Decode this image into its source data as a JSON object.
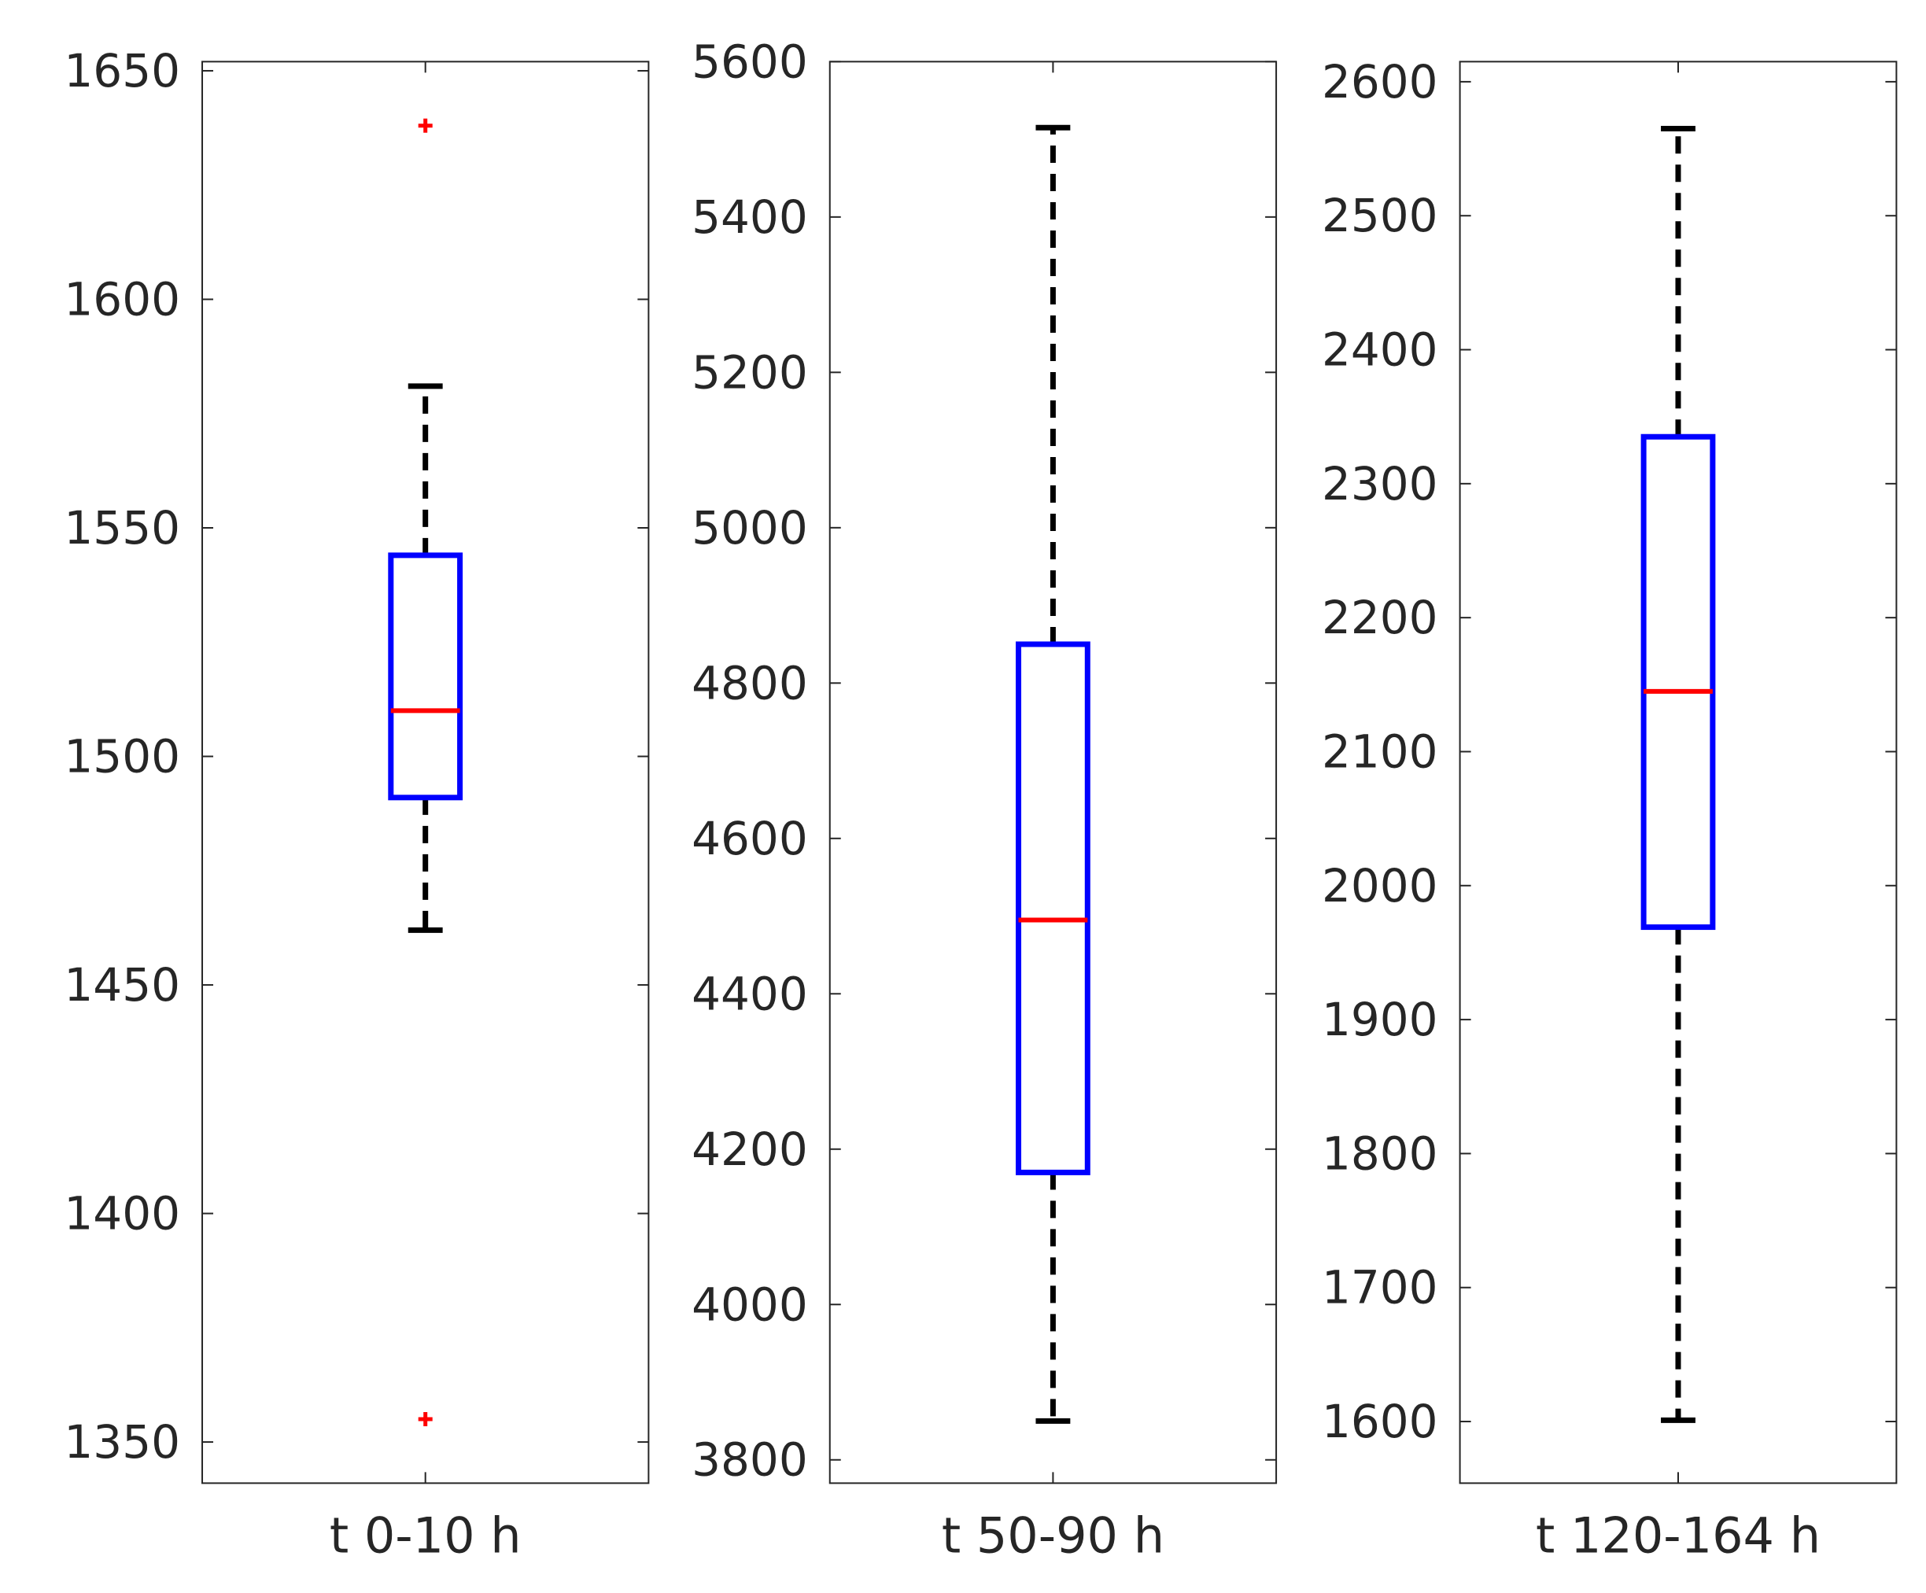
{
  "chart_data": [
    {
      "type": "box",
      "category": "t 0-10 h",
      "yticks": [
        1350,
        1400,
        1450,
        1500,
        1550,
        1600,
        1650
      ],
      "ylim": [
        1341,
        1652
      ],
      "box": {
        "whisker_low": 1462,
        "q1": 1491,
        "median": 1510,
        "q3": 1544,
        "whisker_high": 1581
      },
      "outliers": [
        1638,
        1355
      ],
      "colors": {
        "box": "#0000ff",
        "median": "#ff0000",
        "whisker": "#000000",
        "outlier": "#ff0000"
      }
    },
    {
      "type": "box",
      "category": "t 50-90 h",
      "yticks": [
        3800,
        4000,
        4200,
        4400,
        4600,
        4800,
        5000,
        5200,
        5400,
        5600
      ],
      "ylim": [
        3770,
        5600
      ],
      "box": {
        "whisker_low": 3850,
        "q1": 4170,
        "median": 4495,
        "q3": 4850,
        "whisker_high": 5515
      },
      "outliers": [],
      "colors": {
        "box": "#0000ff",
        "median": "#ff0000",
        "whisker": "#000000",
        "outlier": "#ff0000"
      }
    },
    {
      "type": "box",
      "category": "t 120-164 h",
      "yticks": [
        1600,
        1700,
        1800,
        1900,
        2000,
        2100,
        2200,
        2300,
        2400,
        2500,
        2600
      ],
      "ylim": [
        1554,
        2615
      ],
      "box": {
        "whisker_low": 1601,
        "q1": 1969,
        "median": 2145,
        "q3": 2335,
        "whisker_high": 2565
      },
      "outliers": [],
      "colors": {
        "box": "#0000ff",
        "median": "#ff0000",
        "whisker": "#000000",
        "outlier": "#ff0000"
      }
    }
  ]
}
